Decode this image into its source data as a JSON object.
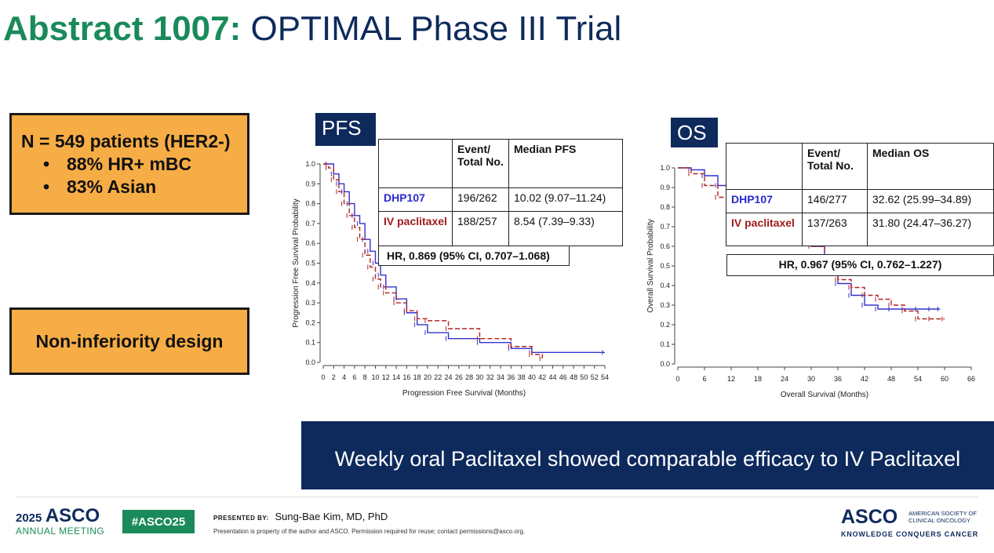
{
  "header": {
    "title_part1": "Abstract 1007:",
    "title_part2": "OPTIMAL Phase III Trial"
  },
  "population_box": {
    "line1": "N = 549 patients (HER2-)",
    "bullets": [
      "88% HR+ mBC",
      "83% Asian"
    ]
  },
  "design_box": {
    "text": "Non-inferiority design"
  },
  "pfs_panel": {
    "tag": "PFS",
    "table": {
      "col_event": "Event/ Total No.",
      "col_median": "Median PFS",
      "rows": [
        {
          "arm": "DHP107",
          "event": "196/262",
          "median": "10.02 (9.07–11.24)"
        },
        {
          "arm": "IV paclitaxel",
          "event": "188/257",
          "median": "8.54 (7.39–9.33)"
        }
      ]
    },
    "hr": "HR, 0.869 (95% CI, 0.707–1.068)"
  },
  "os_panel": {
    "tag": "OS",
    "table": {
      "col_event": "Event/ Total No.",
      "col_median": "Median OS",
      "rows": [
        {
          "arm": "DHP107",
          "event": "146/277",
          "median": "32.62 (25.99–34.89)"
        },
        {
          "arm": "IV paclitaxel",
          "event": "137/263",
          "median": "31.80 (24.47–36.27)"
        }
      ]
    },
    "hr": "HR, 0.967 (95% CI, 0.762–1.227)"
  },
  "colors": {
    "dhp107": "#3333cc",
    "iv_paclitaxel": "#b22222",
    "navy": "#0e2a5c",
    "green": "#1a8a5a",
    "orange": "#f7ad45"
  },
  "chart_data": [
    {
      "type": "line",
      "title": "",
      "xlabel": "Progression Free Survival (Months)",
      "ylabel": "Progression Free Survival Probability",
      "xlim": [
        0,
        54
      ],
      "ylim": [
        0,
        1.0
      ],
      "x_ticks": [
        0,
        2,
        4,
        6,
        8,
        10,
        12,
        14,
        16,
        18,
        20,
        22,
        24,
        26,
        28,
        30,
        32,
        34,
        36,
        38,
        40,
        42,
        44,
        46,
        48,
        50,
        52,
        54
      ],
      "y_ticks": [
        0.0,
        0.1,
        0.2,
        0.3,
        0.4,
        0.5,
        0.6,
        0.7,
        0.8,
        0.9,
        1.0
      ],
      "series": [
        {
          "name": "DHP107",
          "x": [
            0,
            1,
            2,
            3,
            4,
            5,
            6,
            7,
            8,
            9,
            10,
            11,
            12,
            14,
            16,
            18,
            20,
            24,
            30,
            36,
            40,
            54
          ],
          "y": [
            1.0,
            1.0,
            0.95,
            0.9,
            0.86,
            0.8,
            0.74,
            0.7,
            0.62,
            0.56,
            0.5,
            0.44,
            0.38,
            0.32,
            0.25,
            0.19,
            0.15,
            0.12,
            0.1,
            0.07,
            0.05,
            0.05
          ]
        },
        {
          "name": "IV paclitaxel",
          "x": [
            0,
            1,
            2,
            3,
            4,
            5,
            6,
            7,
            8,
            9,
            10,
            11,
            12,
            14,
            16,
            18,
            20,
            24,
            30,
            36,
            40,
            42
          ],
          "y": [
            1.0,
            0.98,
            0.92,
            0.86,
            0.8,
            0.74,
            0.68,
            0.62,
            0.54,
            0.48,
            0.42,
            0.38,
            0.35,
            0.3,
            0.26,
            0.22,
            0.21,
            0.17,
            0.12,
            0.08,
            0.04,
            0.02
          ]
        }
      ]
    },
    {
      "type": "line",
      "title": "",
      "xlabel": "Overall Survival (Months)",
      "ylabel": "Overall Survival Probability",
      "xlim": [
        0,
        66
      ],
      "ylim": [
        0,
        1.0
      ],
      "x_ticks": [
        0,
        6,
        12,
        18,
        24,
        30,
        36,
        42,
        48,
        54,
        60,
        66
      ],
      "y_ticks": [
        0.0,
        0.1,
        0.2,
        0.3,
        0.4,
        0.5,
        0.6,
        0.7,
        0.8,
        0.9,
        1.0
      ],
      "series": [
        {
          "name": "DHP107",
          "x": [
            0,
            3,
            6,
            9,
            12,
            18,
            24,
            30,
            33,
            36,
            39,
            42,
            45,
            48,
            51,
            54,
            57,
            59
          ],
          "y": [
            1.0,
            0.99,
            0.96,
            0.91,
            0.86,
            0.8,
            0.72,
            0.6,
            0.52,
            0.41,
            0.35,
            0.3,
            0.28,
            0.28,
            0.28,
            0.28,
            0.28,
            0.28
          ]
        },
        {
          "name": "IV paclitaxel",
          "x": [
            0,
            3,
            6,
            9,
            12,
            18,
            24,
            30,
            33,
            36,
            39,
            42,
            45,
            48,
            51,
            54,
            57,
            60
          ],
          "y": [
            1.0,
            0.97,
            0.91,
            0.85,
            0.81,
            0.76,
            0.7,
            0.6,
            0.52,
            0.43,
            0.39,
            0.35,
            0.33,
            0.3,
            0.27,
            0.23,
            0.23,
            0.23
          ]
        }
      ]
    }
  ],
  "banner": {
    "text": "Weekly oral Paclitaxel showed comparable efficacy to IV Paclitaxel"
  },
  "footer": {
    "meeting_year": "2025",
    "meeting_org": "ASCO",
    "meeting_sub": "ANNUAL MEETING",
    "hashtag": "#ASCO25",
    "presented_by_label": "PRESENTED BY:",
    "presenter": "Sung-Bae Kim, MD, PhD",
    "copyright": "Presentation is property of the author and ASCO. Permission required for reuse; contact permissions@asco.org.",
    "logo_name": "ASCO",
    "logo_society": "AMERICAN SOCIETY OF CLINICAL ONCOLOGY",
    "logo_tagline": "KNOWLEDGE CONQUERS CANCER"
  }
}
